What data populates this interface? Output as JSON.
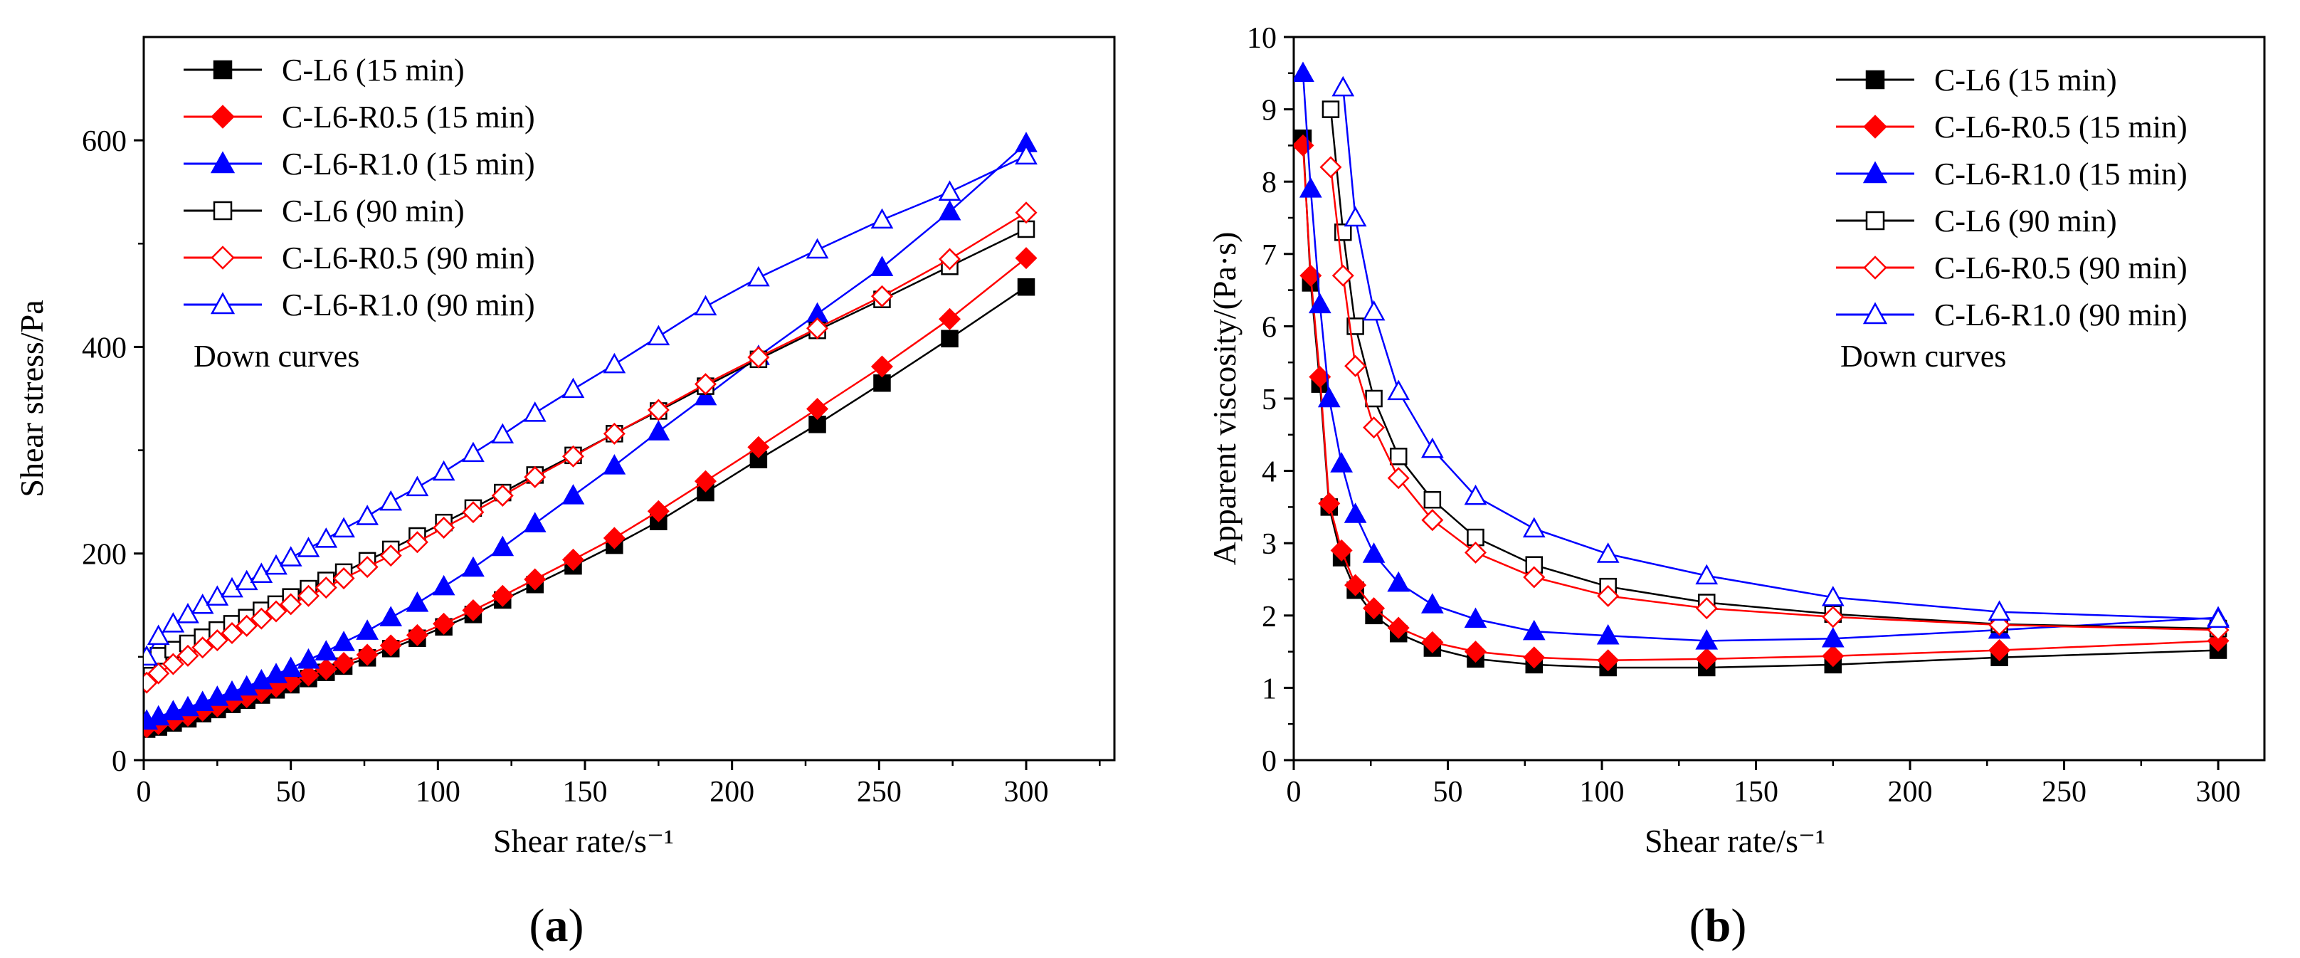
{
  "chart_data": [
    {
      "type": "line",
      "panel_label": "(a)",
      "panel_letter": "a",
      "xlabel": "Shear rate/s⁻¹",
      "ylabel": "Shear stress/Pa",
      "xlim": [
        0,
        330
      ],
      "ylim": [
        0,
        700
      ],
      "xticks": [
        0,
        50,
        100,
        150,
        200,
        250,
        300
      ],
      "yticks": [
        0,
        200,
        400,
        600
      ],
      "annotation": "Down curves",
      "legend_position": "top-left",
      "series": [
        {
          "name": "C-L6 (15 min)",
          "color": "#000000",
          "marker": "square",
          "filled": true,
          "x": [
            1,
            5,
            10,
            15,
            20,
            25,
            30,
            35,
            40,
            45,
            50,
            56,
            62,
            68,
            76,
            84,
            93,
            102,
            112,
            122,
            133,
            146,
            160,
            175,
            191,
            209,
            229,
            251,
            274,
            300
          ],
          "y": [
            30,
            32,
            36,
            40,
            45,
            49,
            54,
            58,
            63,
            68,
            73,
            79,
            85,
            91,
            99,
            108,
            118,
            129,
            141,
            155,
            170,
            188,
            208,
            231,
            259,
            291,
            325,
            365,
            408,
            458
          ]
        },
        {
          "name": "C-L6-R0.5 (15 min)",
          "color": "#ff0000",
          "marker": "diamond",
          "filled": true,
          "x": [
            1,
            5,
            10,
            15,
            20,
            25,
            30,
            35,
            40,
            45,
            50,
            56,
            62,
            68,
            76,
            84,
            93,
            102,
            112,
            122,
            133,
            146,
            160,
            175,
            191,
            209,
            229,
            251,
            274,
            300
          ],
          "y": [
            32,
            35,
            39,
            43,
            48,
            52,
            57,
            61,
            66,
            71,
            76,
            82,
            88,
            94,
            102,
            111,
            121,
            132,
            145,
            159,
            175,
            194,
            215,
            241,
            270,
            303,
            340,
            381,
            427,
            486
          ]
        },
        {
          "name": "C-L6-R1.0 (15 min)",
          "color": "#0000ff",
          "marker": "triangle",
          "filled": true,
          "x": [
            1,
            5,
            10,
            15,
            20,
            25,
            30,
            35,
            40,
            45,
            50,
            56,
            62,
            68,
            76,
            84,
            93,
            102,
            112,
            122,
            133,
            146,
            160,
            175,
            191,
            209,
            229,
            251,
            274,
            300
          ],
          "y": [
            38,
            42,
            47,
            51,
            56,
            61,
            66,
            71,
            77,
            83,
            89,
            97,
            105,
            114,
            125,
            138,
            152,
            168,
            186,
            206,
            229,
            256,
            285,
            318,
            352,
            391,
            432,
            477,
            531,
            597
          ]
        },
        {
          "name": "C-L6 (90 min)",
          "color": "#000000",
          "marker": "square",
          "filled": false,
          "x": [
            1,
            5,
            10,
            15,
            20,
            25,
            30,
            35,
            40,
            45,
            50,
            56,
            62,
            68,
            76,
            84,
            93,
            102,
            112,
            122,
            133,
            146,
            160,
            175,
            191,
            209,
            229,
            251,
            274,
            300
          ],
          "y": [
            97,
            101,
            107,
            113,
            119,
            126,
            132,
            138,
            145,
            151,
            158,
            166,
            174,
            182,
            193,
            204,
            217,
            230,
            244,
            259,
            276,
            295,
            316,
            338,
            362,
            388,
            416,
            446,
            478,
            514
          ]
        },
        {
          "name": "C-L6-R0.5 (90 min)",
          "color": "#ff0000",
          "marker": "diamond",
          "filled": false,
          "x": [
            1,
            5,
            10,
            15,
            20,
            25,
            30,
            35,
            40,
            45,
            50,
            56,
            62,
            68,
            76,
            84,
            93,
            102,
            112,
            122,
            133,
            146,
            160,
            175,
            191,
            209,
            229,
            251,
            274,
            300
          ],
          "y": [
            75,
            84,
            93,
            101,
            109,
            116,
            123,
            130,
            137,
            144,
            151,
            159,
            167,
            176,
            187,
            198,
            211,
            225,
            240,
            256,
            274,
            294,
            316,
            339,
            364,
            390,
            418,
            449,
            485,
            530
          ]
        },
        {
          "name": "C-L6-R1.0 (90 min)",
          "color": "#0000ff",
          "marker": "triangle",
          "filled": false,
          "x": [
            1,
            5,
            10,
            15,
            20,
            25,
            30,
            35,
            40,
            45,
            50,
            56,
            62,
            68,
            76,
            84,
            93,
            102,
            112,
            122,
            133,
            146,
            160,
            175,
            191,
            209,
            229,
            251,
            274,
            300
          ],
          "y": [
            100,
            120,
            132,
            141,
            150,
            158,
            166,
            173,
            180,
            188,
            196,
            205,
            214,
            224,
            236,
            250,
            264,
            279,
            297,
            315,
            336,
            359,
            383,
            410,
            439,
            467,
            494,
            523,
            550,
            585
          ]
        }
      ]
    },
    {
      "type": "line",
      "panel_label": "(b)",
      "panel_letter": "b",
      "xlabel": "Shear rate/s⁻¹",
      "ylabel": "Apparent viscosity/(Pa·s)",
      "xlim": [
        0,
        315
      ],
      "ylim": [
        0,
        10
      ],
      "xticks": [
        0,
        50,
        100,
        150,
        200,
        250,
        300
      ],
      "yticks": [
        0,
        1,
        2,
        3,
        4,
        5,
        6,
        7,
        8,
        9,
        10
      ],
      "annotation": "Down curves",
      "legend_position": "top-right",
      "series": [
        {
          "name": "C-L6 (15 min)",
          "color": "#000000",
          "marker": "square",
          "filled": true,
          "x": [
            3,
            5.5,
            8.5,
            11.5,
            15.5,
            20,
            26,
            34,
            45,
            59,
            78,
            102,
            134,
            175,
            229,
            300
          ],
          "y": [
            8.6,
            6.6,
            5.2,
            3.5,
            2.8,
            2.35,
            2.0,
            1.75,
            1.55,
            1.4,
            1.32,
            1.28,
            1.28,
            1.32,
            1.42,
            1.52
          ]
        },
        {
          "name": "C-L6-R0.5 (15 min)",
          "color": "#ff0000",
          "marker": "diamond",
          "filled": true,
          "x": [
            3,
            5.5,
            8.5,
            11.5,
            15.5,
            20,
            26,
            34,
            45,
            59,
            78,
            102,
            134,
            175,
            229,
            300
          ],
          "y": [
            8.5,
            6.7,
            5.3,
            3.55,
            2.9,
            2.42,
            2.1,
            1.83,
            1.63,
            1.5,
            1.42,
            1.38,
            1.4,
            1.44,
            1.52,
            1.65
          ]
        },
        {
          "name": "C-L6-R1.0 (15 min)",
          "color": "#0000ff",
          "marker": "triangle",
          "filled": true,
          "x": [
            3,
            5.5,
            8.5,
            11.5,
            15.5,
            20,
            26,
            34,
            45,
            59,
            78,
            102,
            134,
            175,
            229,
            300
          ],
          "y": [
            9.5,
            7.9,
            6.3,
            5.0,
            4.1,
            3.4,
            2.85,
            2.45,
            2.15,
            1.95,
            1.78,
            1.72,
            1.65,
            1.68,
            1.8,
            1.97
          ]
        },
        {
          "name": "C-L6 (90 min)",
          "color": "#000000",
          "marker": "square",
          "filled": false,
          "x": [
            12,
            16,
            20,
            26,
            34,
            45,
            59,
            78,
            102,
            134,
            175,
            229,
            300
          ],
          "y": [
            9.0,
            7.3,
            6.0,
            5.0,
            4.2,
            3.6,
            3.08,
            2.7,
            2.4,
            2.18,
            2.02,
            1.88,
            1.82
          ]
        },
        {
          "name": "C-L6-R0.5 (90 min)",
          "color": "#ff0000",
          "marker": "diamond",
          "filled": false,
          "x": [
            12,
            16,
            20,
            26,
            34,
            45,
            59,
            78,
            102,
            134,
            175,
            229,
            300
          ],
          "y": [
            8.2,
            6.7,
            5.45,
            4.6,
            3.9,
            3.32,
            2.87,
            2.53,
            2.27,
            2.1,
            1.98,
            1.87,
            1.8
          ]
        },
        {
          "name": "C-L6-R1.0 (90 min)",
          "color": "#0000ff",
          "marker": "triangle",
          "filled": false,
          "x": [
            16,
            20,
            26,
            34,
            45,
            59,
            78,
            102,
            134,
            175,
            229,
            300
          ],
          "y": [
            9.3,
            7.5,
            6.2,
            5.1,
            4.3,
            3.65,
            3.2,
            2.85,
            2.55,
            2.25,
            2.05,
            1.95
          ]
        }
      ]
    }
  ]
}
